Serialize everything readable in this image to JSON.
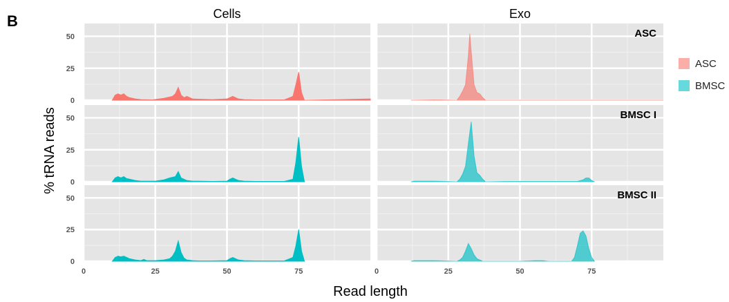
{
  "figure_label": "B",
  "chart_data": {
    "type": "area",
    "facet_columns": [
      "Cells",
      "Exo"
    ],
    "facet_rows": [
      "ASC",
      "BMSC I",
      "BMSC II"
    ],
    "xlabel": "Read length",
    "ylabel": "% tRNA reads",
    "xlim": [
      0,
      100
    ],
    "ylim": [
      0,
      60
    ],
    "x_ticks": [
      0,
      25,
      50,
      75
    ],
    "y_ticks": [
      0,
      25,
      50
    ],
    "grid": true,
    "legend": {
      "position": "right",
      "title": "",
      "entries": [
        {
          "label": "ASC",
          "color": "#F8766D"
        },
        {
          "label": "BMSC",
          "color": "#00BFC4"
        }
      ]
    },
    "panels": [
      {
        "row": "ASC",
        "col": "Cells",
        "group": "ASC",
        "points": [
          [
            10,
            0
          ],
          [
            11,
            4
          ],
          [
            12,
            5
          ],
          [
            13,
            4
          ],
          [
            14,
            5
          ],
          [
            15,
            3
          ],
          [
            16,
            2
          ],
          [
            18,
            1
          ],
          [
            20,
            0.5
          ],
          [
            24,
            0.3
          ],
          [
            28,
            1.5
          ],
          [
            30,
            2.5
          ],
          [
            31,
            3
          ],
          [
            32,
            5
          ],
          [
            33,
            10
          ],
          [
            34,
            4
          ],
          [
            35,
            2
          ],
          [
            36,
            3
          ],
          [
            37,
            2
          ],
          [
            38,
            1
          ],
          [
            40,
            0.8
          ],
          [
            45,
            0.5
          ],
          [
            50,
            1
          ],
          [
            51,
            2
          ],
          [
            52,
            3
          ],
          [
            53,
            2
          ],
          [
            54,
            1
          ],
          [
            56,
            0.5
          ],
          [
            60,
            0.3
          ],
          [
            70,
            0.3
          ],
          [
            73,
            3
          ],
          [
            74,
            12
          ],
          [
            75,
            22
          ],
          [
            76,
            6
          ],
          [
            77,
            0
          ],
          [
            90,
            0.5
          ],
          [
            100,
            1
          ]
        ]
      },
      {
        "row": "ASC",
        "col": "Exo",
        "group": "ASC",
        "points": [
          [
            12,
            0
          ],
          [
            20,
            0.3
          ],
          [
            28,
            0
          ],
          [
            29,
            3
          ],
          [
            30,
            7
          ],
          [
            31,
            12
          ],
          [
            32,
            35
          ],
          [
            32.5,
            52
          ],
          [
            33,
            38
          ],
          [
            34,
            12
          ],
          [
            35,
            6
          ],
          [
            36,
            5
          ],
          [
            37,
            2
          ],
          [
            38,
            0
          ],
          [
            50,
            0
          ],
          [
            100,
            0
          ]
        ]
      },
      {
        "row": "BMSC I",
        "col": "Cells",
        "group": "BMSC",
        "points": [
          [
            10,
            0
          ],
          [
            11,
            3
          ],
          [
            12,
            4
          ],
          [
            13,
            3
          ],
          [
            14,
            4
          ],
          [
            15,
            2.5
          ],
          [
            16,
            2
          ],
          [
            18,
            1
          ],
          [
            20,
            0.5
          ],
          [
            25,
            0.5
          ],
          [
            28,
            1.5
          ],
          [
            30,
            3
          ],
          [
            31,
            3.5
          ],
          [
            32,
            4
          ],
          [
            33,
            8
          ],
          [
            34,
            3
          ],
          [
            35,
            2
          ],
          [
            36,
            1
          ],
          [
            38,
            0.5
          ],
          [
            40,
            0.5
          ],
          [
            45,
            0.3
          ],
          [
            50,
            0.5
          ],
          [
            51,
            2
          ],
          [
            52,
            3
          ],
          [
            53,
            2
          ],
          [
            54,
            1
          ],
          [
            56,
            0.5
          ],
          [
            60,
            0.3
          ],
          [
            70,
            0.3
          ],
          [
            73,
            2
          ],
          [
            74,
            15
          ],
          [
            75,
            35
          ],
          [
            76,
            12
          ],
          [
            77,
            0
          ]
        ]
      },
      {
        "row": "BMSC I",
        "col": "Exo",
        "group": "BMSC",
        "points": [
          [
            12,
            0
          ],
          [
            13,
            0.5
          ],
          [
            20,
            0.5
          ],
          [
            28,
            0
          ],
          [
            29,
            2
          ],
          [
            30,
            6
          ],
          [
            31,
            12
          ],
          [
            32,
            30
          ],
          [
            33,
            47
          ],
          [
            34,
            20
          ],
          [
            35,
            7
          ],
          [
            36,
            5
          ],
          [
            37,
            2
          ],
          [
            38,
            0
          ],
          [
            45,
            0.3
          ],
          [
            70,
            0.3
          ],
          [
            72,
            1.5
          ],
          [
            73,
            3
          ],
          [
            74,
            3
          ],
          [
            75,
            1
          ],
          [
            76,
            0
          ]
        ]
      },
      {
        "row": "BMSC II",
        "col": "Cells",
        "group": "BMSC",
        "points": [
          [
            10,
            0
          ],
          [
            11,
            3
          ],
          [
            12,
            4
          ],
          [
            13,
            3.5
          ],
          [
            14,
            4
          ],
          [
            15,
            3
          ],
          [
            16,
            2
          ],
          [
            18,
            1
          ],
          [
            20,
            0.5
          ],
          [
            21,
            1.5
          ],
          [
            22,
            0.5
          ],
          [
            25,
            0.5
          ],
          [
            28,
            1
          ],
          [
            30,
            2
          ],
          [
            31,
            4
          ],
          [
            32,
            8
          ],
          [
            33,
            16
          ],
          [
            34,
            7
          ],
          [
            35,
            2.5
          ],
          [
            36,
            1
          ],
          [
            38,
            0.5
          ],
          [
            40,
            0.3
          ],
          [
            45,
            0.3
          ],
          [
            50,
            0.5
          ],
          [
            51,
            2
          ],
          [
            52,
            3
          ],
          [
            53,
            2
          ],
          [
            54,
            1
          ],
          [
            56,
            0.5
          ],
          [
            60,
            0.3
          ],
          [
            70,
            0.3
          ],
          [
            73,
            3
          ],
          [
            74,
            12
          ],
          [
            75,
            25
          ],
          [
            76,
            8
          ],
          [
            77,
            0
          ]
        ]
      },
      {
        "row": "BMSC II",
        "col": "Exo",
        "group": "BMSC",
        "points": [
          [
            12,
            0
          ],
          [
            13,
            0.5
          ],
          [
            18,
            0.5
          ],
          [
            20,
            0.5
          ],
          [
            28,
            0
          ],
          [
            29,
            1
          ],
          [
            30,
            3
          ],
          [
            31,
            8
          ],
          [
            32,
            14
          ],
          [
            33,
            10
          ],
          [
            34,
            5
          ],
          [
            35,
            2
          ],
          [
            36,
            1
          ],
          [
            37,
            0
          ],
          [
            50,
            0
          ],
          [
            55,
            0.5
          ],
          [
            58,
            0.5
          ],
          [
            60,
            0
          ],
          [
            68,
            0
          ],
          [
            69,
            3
          ],
          [
            70,
            12
          ],
          [
            71,
            22
          ],
          [
            72,
            24
          ],
          [
            73,
            20
          ],
          [
            74,
            10
          ],
          [
            75,
            3
          ],
          [
            76,
            0
          ]
        ]
      }
    ]
  }
}
